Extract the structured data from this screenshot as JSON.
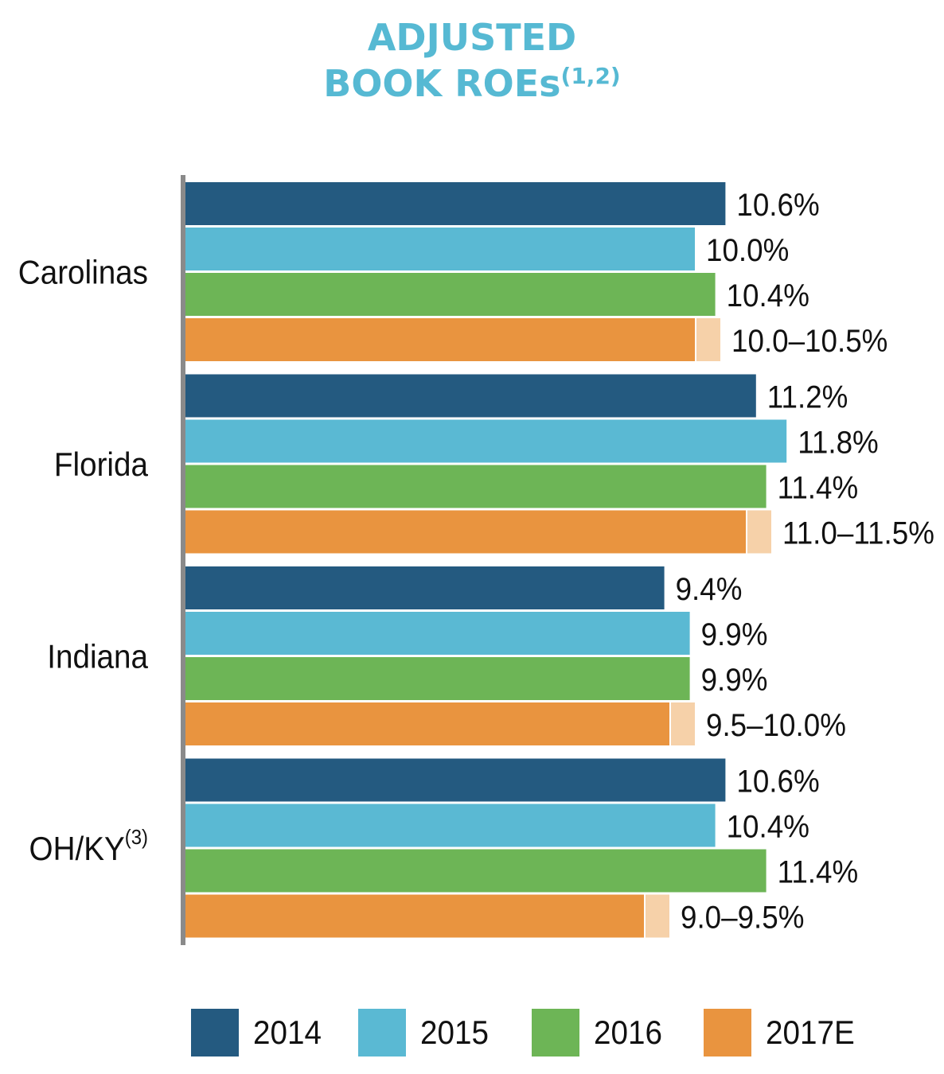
{
  "title": {
    "line1": "ADJUSTED",
    "line2": "BOOK ROEs",
    "line2_superscript": "(1,2)"
  },
  "chart_data": {
    "type": "bar",
    "orientation": "horizontal",
    "categories": [
      {
        "label": "Carolinas",
        "superscript": ""
      },
      {
        "label": "Florida",
        "superscript": ""
      },
      {
        "label": "Indiana",
        "superscript": ""
      },
      {
        "label": "OH/KY",
        "superscript": "(3)"
      }
    ],
    "series": [
      {
        "name": "2014",
        "color": "#245a80",
        "values": [
          10.6,
          11.2,
          9.4,
          10.6
        ],
        "labels": [
          "10.6%",
          "11.2%",
          "9.4%",
          "10.6%"
        ]
      },
      {
        "name": "2015",
        "color": "#5ab9d3",
        "values": [
          10.0,
          11.8,
          9.9,
          10.4
        ],
        "labels": [
          "10.0%",
          "11.8%",
          "9.9%",
          "10.4%"
        ]
      },
      {
        "name": "2016",
        "color": "#6db556",
        "values": [
          10.4,
          11.4,
          9.9,
          11.4
        ],
        "labels": [
          "10.4%",
          "11.4%",
          "9.9%",
          "11.4%"
        ]
      },
      {
        "name": "2017E",
        "color": "#e9943f",
        "range_color": "#f6d1a9",
        "values": [
          10.0,
          11.0,
          9.5,
          9.0
        ],
        "range_high": [
          10.5,
          11.5,
          10.0,
          9.5
        ],
        "labels": [
          "10.0–10.5%",
          "11.0–11.5%",
          "9.5–10.0%",
          "9.0–9.5%"
        ]
      }
    ],
    "xlim": [
      0,
      12
    ],
    "legend_position": "bottom",
    "grid": false
  },
  "legend": [
    {
      "label": "2014",
      "color": "#245a80"
    },
    {
      "label": "2015",
      "color": "#5ab9d3"
    },
    {
      "label": "2016",
      "color": "#6db556"
    },
    {
      "label": "2017E",
      "color": "#e9943f"
    }
  ]
}
